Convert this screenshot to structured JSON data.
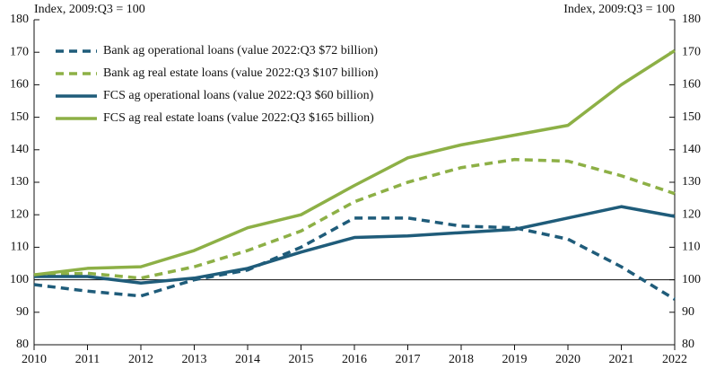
{
  "chart_data": {
    "type": "line",
    "ylabel": "Index, 2009:Q3 = 100",
    "y2label": "Index, 2009:Q3 = 100",
    "x": [
      2010,
      2011,
      2012,
      2013,
      2014,
      2015,
      2016,
      2017,
      2018,
      2019,
      2020,
      2021,
      2022
    ],
    "xlim": [
      2010,
      2022
    ],
    "xticks": [
      2010,
      2011,
      2012,
      2013,
      2014,
      2015,
      2016,
      2017,
      2018,
      2019,
      2020,
      2021,
      2022
    ],
    "ylim": [
      80,
      180
    ],
    "yticks": [
      80,
      90,
      100,
      110,
      120,
      130,
      140,
      150,
      160,
      170,
      180
    ],
    "y2lim": [
      80,
      180
    ],
    "y2ticks": [
      80,
      90,
      100,
      110,
      120,
      130,
      140,
      150,
      160,
      170,
      180
    ],
    "reference_line": 100,
    "legend": "upper left",
    "series": [
      {
        "name": "Bank ag operational loans (value 2022:Q3 $72 billion)",
        "color": "#1f5c7a",
        "dashed": true,
        "values": [
          98.5,
          96.5,
          95,
          100,
          103,
          110,
          119,
          119,
          116.5,
          116,
          112.5,
          104,
          94
        ]
      },
      {
        "name": "Bank ag real estate loans (value 2022:Q3 $107 billion)",
        "color": "#8db046",
        "dashed": true,
        "values": [
          101.5,
          102,
          100.5,
          104,
          109,
          115,
          124,
          130,
          134.5,
          137,
          136.5,
          132,
          126.5
        ]
      },
      {
        "name": "FCS ag operational loans (value 2022:Q3 $60 billion)",
        "color": "#1f5c7a",
        "dashed": false,
        "values": [
          101,
          101,
          99,
          100.5,
          103.5,
          108.5,
          113,
          113.5,
          114.5,
          115.5,
          119,
          122.5,
          119.5
        ]
      },
      {
        "name": "FCS ag real estate loans (value 2022:Q3 $165 billion)",
        "color": "#8db046",
        "dashed": false,
        "values": [
          101.5,
          103.5,
          104,
          109,
          116,
          120,
          129,
          137.5,
          141.5,
          144.5,
          147.5,
          160,
          170.5
        ]
      }
    ]
  }
}
